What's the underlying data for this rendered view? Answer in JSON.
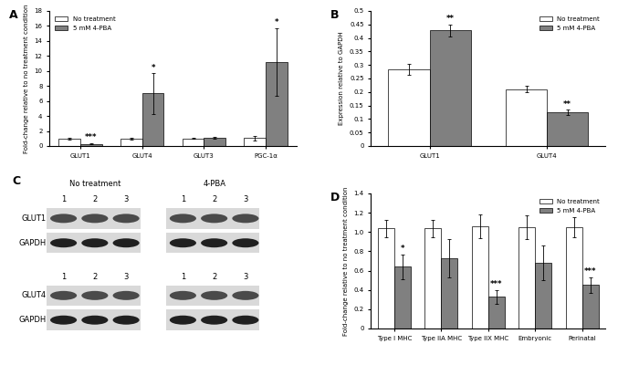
{
  "chart_data": [
    {
      "type": "bar",
      "panel": "A",
      "categories": [
        "GLUT1",
        "GLUT4",
        "GLUT3",
        "PGC-1α"
      ],
      "y_label": "Fold-change relative to no treatment condition",
      "series": [
        {
          "name": "No treatment",
          "color": "#ffffff",
          "values": [
            1.0,
            1.0,
            1.0,
            1.05
          ],
          "errors": [
            0.1,
            0.1,
            0.05,
            0.3
          ],
          "significance": [
            null,
            null,
            null,
            null
          ]
        },
        {
          "name": "5 mM 4-PBA",
          "color": "#808080",
          "values": [
            0.3,
            7.0,
            1.1,
            11.2
          ],
          "errors": [
            0.1,
            2.7,
            0.15,
            4.5
          ],
          "significance": [
            "***",
            "*",
            null,
            "*"
          ]
        }
      ],
      "ylim": [
        0,
        18
      ],
      "yticks": [
        0,
        2,
        4,
        6,
        8,
        10,
        12,
        14,
        16,
        18
      ],
      "grid": false,
      "legend": "upper left"
    },
    {
      "type": "bar",
      "panel": "B",
      "categories": [
        "GLUT1",
        "GLUT4"
      ],
      "y_label": "Expression relative to GAPDH",
      "series": [
        {
          "name": "No treatment",
          "color": "#ffffff",
          "values": [
            0.283,
            0.21
          ],
          "errors": [
            0.02,
            0.012
          ],
          "significance": [
            null,
            null
          ]
        },
        {
          "name": "5 mM 4-PBA",
          "color": "#808080",
          "values": [
            0.428,
            0.125
          ],
          "errors": [
            0.022,
            0.01
          ],
          "significance": [
            "**",
            "**"
          ]
        }
      ],
      "ylim": [
        0,
        0.5
      ],
      "yticks": [
        0,
        0.05,
        0.1,
        0.15,
        0.2,
        0.25,
        0.3,
        0.35,
        0.4,
        0.45,
        0.5
      ],
      "grid": false,
      "legend": "upper right"
    },
    {
      "type": "bar",
      "panel": "D",
      "categories": [
        "Type I MHC",
        "Type IIA MHC",
        "Type IIX MHC",
        "Embryonic",
        "Perinatal"
      ],
      "y_label": "Fold-change relative to no treatment condition",
      "series": [
        {
          "name": "No treatment",
          "color": "#ffffff",
          "values": [
            1.04,
            1.04,
            1.06,
            1.05,
            1.05
          ],
          "errors": [
            0.09,
            0.09,
            0.12,
            0.12,
            0.1
          ],
          "significance": [
            null,
            null,
            null,
            null,
            null
          ]
        },
        {
          "name": "5 mM 4-PBA",
          "color": "#808080",
          "values": [
            0.64,
            0.73,
            0.33,
            0.68,
            0.45
          ],
          "errors": [
            0.13,
            0.2,
            0.07,
            0.18,
            0.08
          ],
          "significance": [
            "*",
            null,
            "***",
            null,
            "***"
          ]
        }
      ],
      "ylim": [
        0,
        1.4
      ],
      "yticks": [
        0,
        0.2,
        0.4,
        0.6,
        0.8,
        1.0,
        1.2,
        1.4
      ],
      "grid": false,
      "legend": "upper right"
    }
  ],
  "blot": {
    "panel": "C",
    "groups": [
      "No treatment",
      "4-PBA"
    ],
    "lanes": [
      "1",
      "2",
      "3"
    ],
    "blots": [
      {
        "rows": [
          "GLUT1",
          "GAPDH"
        ]
      },
      {
        "rows": [
          "GLUT4",
          "GAPDH"
        ]
      }
    ]
  }
}
